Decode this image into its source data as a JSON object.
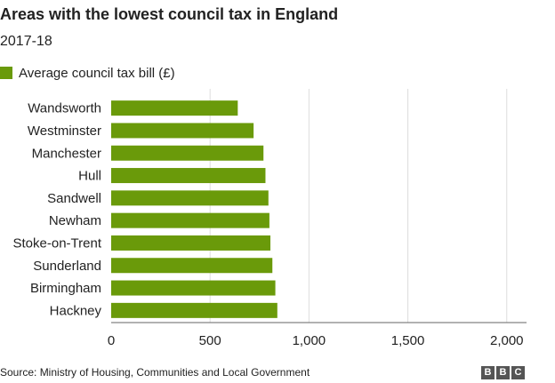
{
  "header": {
    "title": "Areas with the lowest council tax in England",
    "subtitle": "2017-18"
  },
  "legend": {
    "label": "Average council tax bill (£)"
  },
  "colors": {
    "bar": "#6a9a0a",
    "grid": "#dddddd",
    "axis": "#666666",
    "text": "#222222",
    "logo": "#555555"
  },
  "chart_data": {
    "type": "bar",
    "orientation": "horizontal",
    "categories": [
      "Wandsworth",
      "Westminster",
      "Manchester",
      "Hull",
      "Sandwell",
      "Newham",
      "Stoke-on-Trent",
      "Sunderland",
      "Birmingham",
      "Hackney"
    ],
    "series": [
      {
        "name": "Average council tax bill (£)",
        "values": [
          640,
          720,
          770,
          780,
          795,
          800,
          805,
          815,
          830,
          840
        ]
      }
    ],
    "xlim": [
      0,
      2100
    ],
    "xticks": [
      0,
      500,
      1000,
      1500,
      2000
    ],
    "xtick_labels": [
      "0",
      "500",
      "1,000",
      "1,500",
      "2,000"
    ],
    "grid": true,
    "legend_position": "top-left"
  },
  "footer": {
    "source": "Source: Ministry of Housing, Communities and Local Government",
    "logo_letters": [
      "B",
      "B",
      "C"
    ]
  }
}
